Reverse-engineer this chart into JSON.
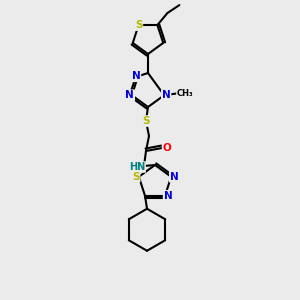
{
  "background_color": "#ebebeb",
  "bond_color": "#000000",
  "atom_colors": {
    "S": "#b8b800",
    "N": "#0000dd",
    "O": "#ff0000",
    "C": "#000000",
    "HN": "#008080"
  },
  "figsize": [
    3.0,
    3.0
  ],
  "dpi": 100
}
